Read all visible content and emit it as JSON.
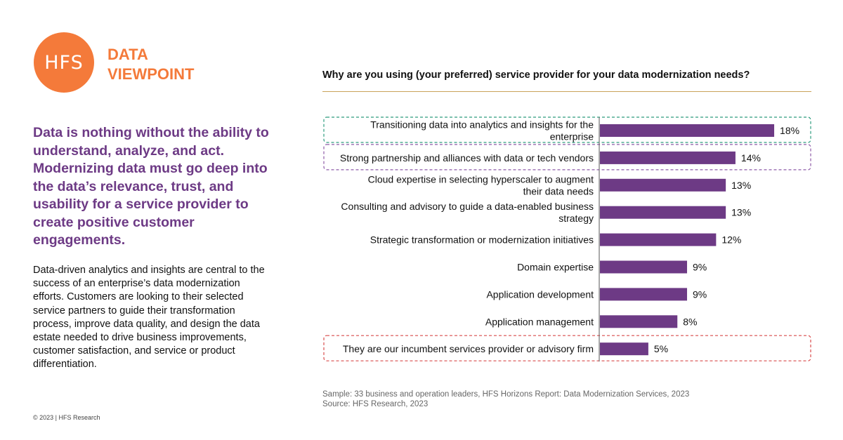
{
  "logo": {
    "circle_text": "HFS",
    "line1": "DATA",
    "line2": "VIEWPOINT"
  },
  "headline": "Data is nothing without the ability to understand, analyze, and act. Modernizing data must go deep into the data’s relevance, trust, and usability for a service provider to create positive customer engagements.",
  "body": "Data-driven analytics and insights are central to the success of an enterprise’s data modernization efforts. Customers are looking to their selected service partners to guide their transformation process, improve data quality, and design the data estate needed to drive business improvements, customer satisfaction, and service or product differentiation.",
  "footer": "© 2023 | HFS Research",
  "sample": {
    "line1": "Sample: 33 business and operation leaders, HFS Horizons Report: Data Modernization Services, 2023",
    "line2": "Source: HFS Research, 2023"
  },
  "colors": {
    "accent": "#F47A3A",
    "bar": "#6D3A85",
    "rule": "#C9A25A",
    "highlight_green": "#2E9C7E",
    "highlight_purple": "#8E5BA8",
    "highlight_red": "#D94C4C"
  },
  "chart_data": {
    "type": "bar",
    "orientation": "horizontal",
    "title": "Why are you using (your preferred) service provider for your data modernization needs?",
    "categories": [
      [
        "Transitioning data into analytics and insights for the",
        "enterprise"
      ],
      [
        "Strong partnership and alliances with data or tech vendors"
      ],
      [
        "Cloud expertise in selecting hyperscaler to augment",
        "their data needs"
      ],
      [
        "Consulting and advisory to guide a data-enabled business",
        "strategy"
      ],
      [
        "Strategic transformation or modernization initiatives"
      ],
      [
        "Domain expertise"
      ],
      [
        "Application development"
      ],
      [
        "Application management"
      ],
      [
        "They are our incumbent services provider or advisory firm"
      ]
    ],
    "values": [
      18,
      14,
      13,
      13,
      12,
      9,
      9,
      8,
      5
    ],
    "value_labels": [
      "18%",
      "14%",
      "13%",
      "13%",
      "12%",
      "9%",
      "9%",
      "8%",
      "5%"
    ],
    "unit": "%",
    "highlights": [
      {
        "index": 0,
        "color": "green"
      },
      {
        "index": 1,
        "color": "purple"
      },
      {
        "index": 8,
        "color": "red"
      }
    ]
  }
}
